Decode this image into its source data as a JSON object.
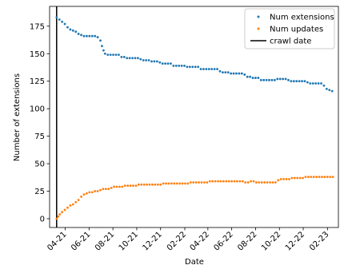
{
  "chart_data": {
    "type": "scatter",
    "xlabel": "Date",
    "ylabel": "Number of extensions",
    "x_tick_labels": [
      "04-21",
      "06-21",
      "08-21",
      "10-21",
      "12-21",
      "02-22",
      "04-22",
      "06-22",
      "08-22",
      "10-22",
      "12-22",
      "02-23"
    ],
    "x_tick_dates": [
      "2021-04-01",
      "2021-06-01",
      "2021-08-01",
      "2021-10-01",
      "2021-12-01",
      "2022-02-01",
      "2022-04-01",
      "2022-06-01",
      "2022-08-01",
      "2022-10-01",
      "2022-12-01",
      "2023-02-01"
    ],
    "xlim": [
      "2021-02-20",
      "2023-03-01"
    ],
    "ylim": [
      -8,
      193
    ],
    "y_ticks": [
      0,
      25,
      50,
      75,
      100,
      125,
      150,
      175
    ],
    "legend": {
      "placement": "top-right"
    },
    "crawl_date": {
      "name": "crawl date",
      "x": "2021-03-10",
      "color": "#000000"
    },
    "series": [
      {
        "name": "Num extensions",
        "color": "#1f77b4",
        "points": [
          [
            "2021-03-10",
            183
          ],
          [
            "2021-03-17",
            181
          ],
          [
            "2021-03-24",
            179
          ],
          [
            "2021-03-31",
            177
          ],
          [
            "2021-04-07",
            174
          ],
          [
            "2021-04-14",
            172
          ],
          [
            "2021-04-21",
            171
          ],
          [
            "2021-04-28",
            170
          ],
          [
            "2021-05-05",
            168
          ],
          [
            "2021-05-12",
            167
          ],
          [
            "2021-05-19",
            166
          ],
          [
            "2021-05-26",
            166
          ],
          [
            "2021-06-02",
            166
          ],
          [
            "2021-06-09",
            166
          ],
          [
            "2021-06-16",
            166
          ],
          [
            "2021-06-23",
            165
          ],
          [
            "2021-06-30",
            162
          ],
          [
            "2021-07-04",
            157
          ],
          [
            "2021-07-08",
            153
          ],
          [
            "2021-07-12",
            150
          ],
          [
            "2021-07-19",
            149
          ],
          [
            "2021-07-26",
            149
          ],
          [
            "2021-08-02",
            149
          ],
          [
            "2021-08-09",
            149
          ],
          [
            "2021-08-16",
            149
          ],
          [
            "2021-08-23",
            147
          ],
          [
            "2021-08-30",
            147
          ],
          [
            "2021-09-06",
            146
          ],
          [
            "2021-09-13",
            146
          ],
          [
            "2021-09-20",
            146
          ],
          [
            "2021-09-27",
            146
          ],
          [
            "2021-10-04",
            146
          ],
          [
            "2021-10-11",
            145
          ],
          [
            "2021-10-18",
            144
          ],
          [
            "2021-10-25",
            144
          ],
          [
            "2021-11-01",
            144
          ],
          [
            "2021-11-08",
            143
          ],
          [
            "2021-11-15",
            143
          ],
          [
            "2021-11-22",
            143
          ],
          [
            "2021-11-29",
            142
          ],
          [
            "2021-12-06",
            141
          ],
          [
            "2021-12-13",
            141
          ],
          [
            "2021-12-20",
            141
          ],
          [
            "2021-12-27",
            141
          ],
          [
            "2022-01-03",
            139
          ],
          [
            "2022-01-10",
            139
          ],
          [
            "2022-01-17",
            139
          ],
          [
            "2022-01-24",
            139
          ],
          [
            "2022-01-31",
            139
          ],
          [
            "2022-02-07",
            138
          ],
          [
            "2022-02-14",
            138
          ],
          [
            "2022-02-21",
            138
          ],
          [
            "2022-02-28",
            138
          ],
          [
            "2022-03-07",
            138
          ],
          [
            "2022-03-14",
            136
          ],
          [
            "2022-03-21",
            136
          ],
          [
            "2022-03-28",
            136
          ],
          [
            "2022-04-04",
            136
          ],
          [
            "2022-04-11",
            136
          ],
          [
            "2022-04-18",
            136
          ],
          [
            "2022-04-25",
            136
          ],
          [
            "2022-05-02",
            134
          ],
          [
            "2022-05-09",
            133
          ],
          [
            "2022-05-16",
            133
          ],
          [
            "2022-05-23",
            133
          ],
          [
            "2022-05-30",
            132
          ],
          [
            "2022-06-06",
            132
          ],
          [
            "2022-06-13",
            132
          ],
          [
            "2022-06-20",
            132
          ],
          [
            "2022-06-27",
            132
          ],
          [
            "2022-07-04",
            131
          ],
          [
            "2022-07-11",
            129
          ],
          [
            "2022-07-18",
            129
          ],
          [
            "2022-07-25",
            128
          ],
          [
            "2022-08-01",
            128
          ],
          [
            "2022-08-08",
            128
          ],
          [
            "2022-08-15",
            126
          ],
          [
            "2022-08-22",
            126
          ],
          [
            "2022-08-29",
            126
          ],
          [
            "2022-09-05",
            126
          ],
          [
            "2022-09-12",
            126
          ],
          [
            "2022-09-19",
            126
          ],
          [
            "2022-09-26",
            127
          ],
          [
            "2022-10-03",
            127
          ],
          [
            "2022-10-10",
            127
          ],
          [
            "2022-10-17",
            127
          ],
          [
            "2022-10-24",
            126
          ],
          [
            "2022-10-31",
            125
          ],
          [
            "2022-11-07",
            125
          ],
          [
            "2022-11-14",
            125
          ],
          [
            "2022-11-21",
            125
          ],
          [
            "2022-11-28",
            125
          ],
          [
            "2022-12-05",
            125
          ],
          [
            "2022-12-12",
            124
          ],
          [
            "2022-12-19",
            123
          ],
          [
            "2022-12-26",
            123
          ],
          [
            "2023-01-02",
            123
          ],
          [
            "2023-01-09",
            123
          ],
          [
            "2023-01-16",
            123
          ],
          [
            "2023-01-23",
            121
          ],
          [
            "2023-01-30",
            118
          ],
          [
            "2023-02-06",
            117
          ],
          [
            "2023-02-13",
            116
          ]
        ]
      },
      {
        "name": "Num updates",
        "color": "#ff7f0e",
        "points": [
          [
            "2021-03-10",
            0
          ],
          [
            "2021-03-14",
            2
          ],
          [
            "2021-03-18",
            4
          ],
          [
            "2021-03-24",
            6
          ],
          [
            "2021-03-31",
            8
          ],
          [
            "2021-04-07",
            10
          ],
          [
            "2021-04-14",
            12
          ],
          [
            "2021-04-21",
            13
          ],
          [
            "2021-04-28",
            15
          ],
          [
            "2021-05-05",
            17
          ],
          [
            "2021-05-12",
            20
          ],
          [
            "2021-05-19",
            22
          ],
          [
            "2021-05-26",
            23
          ],
          [
            "2021-06-02",
            24
          ],
          [
            "2021-06-09",
            24
          ],
          [
            "2021-06-16",
            25
          ],
          [
            "2021-06-23",
            25
          ],
          [
            "2021-06-30",
            26
          ],
          [
            "2021-07-07",
            27
          ],
          [
            "2021-07-14",
            27
          ],
          [
            "2021-07-21",
            27
          ],
          [
            "2021-07-28",
            28
          ],
          [
            "2021-08-04",
            29
          ],
          [
            "2021-08-11",
            29
          ],
          [
            "2021-08-18",
            29
          ],
          [
            "2021-08-25",
            29
          ],
          [
            "2021-09-01",
            30
          ],
          [
            "2021-09-08",
            30
          ],
          [
            "2021-09-15",
            30
          ],
          [
            "2021-09-22",
            30
          ],
          [
            "2021-09-29",
            30
          ],
          [
            "2021-10-06",
            31
          ],
          [
            "2021-10-13",
            31
          ],
          [
            "2021-10-20",
            31
          ],
          [
            "2021-10-27",
            31
          ],
          [
            "2021-11-03",
            31
          ],
          [
            "2021-11-10",
            31
          ],
          [
            "2021-11-17",
            31
          ],
          [
            "2021-11-24",
            31
          ],
          [
            "2021-12-01",
            31
          ],
          [
            "2021-12-08",
            32
          ],
          [
            "2021-12-15",
            32
          ],
          [
            "2021-12-22",
            32
          ],
          [
            "2021-12-29",
            32
          ],
          [
            "2022-01-05",
            32
          ],
          [
            "2022-01-12",
            32
          ],
          [
            "2022-01-19",
            32
          ],
          [
            "2022-01-26",
            32
          ],
          [
            "2022-02-02",
            32
          ],
          [
            "2022-02-09",
            32
          ],
          [
            "2022-02-16",
            33
          ],
          [
            "2022-02-23",
            33
          ],
          [
            "2022-03-02",
            33
          ],
          [
            "2022-03-09",
            33
          ],
          [
            "2022-03-16",
            33
          ],
          [
            "2022-03-23",
            33
          ],
          [
            "2022-03-30",
            33
          ],
          [
            "2022-04-06",
            34
          ],
          [
            "2022-04-13",
            34
          ],
          [
            "2022-04-20",
            34
          ],
          [
            "2022-04-27",
            34
          ],
          [
            "2022-05-04",
            34
          ],
          [
            "2022-05-11",
            34
          ],
          [
            "2022-05-18",
            34
          ],
          [
            "2022-05-25",
            34
          ],
          [
            "2022-06-01",
            34
          ],
          [
            "2022-06-08",
            34
          ],
          [
            "2022-06-15",
            34
          ],
          [
            "2022-06-22",
            34
          ],
          [
            "2022-06-29",
            34
          ],
          [
            "2022-07-06",
            33
          ],
          [
            "2022-07-13",
            33
          ],
          [
            "2022-07-20",
            34
          ],
          [
            "2022-07-27",
            34
          ],
          [
            "2022-08-03",
            33
          ],
          [
            "2022-08-10",
            33
          ],
          [
            "2022-08-17",
            33
          ],
          [
            "2022-08-24",
            33
          ],
          [
            "2022-08-31",
            33
          ],
          [
            "2022-09-07",
            33
          ],
          [
            "2022-09-14",
            33
          ],
          [
            "2022-09-21",
            33
          ],
          [
            "2022-09-28",
            35
          ],
          [
            "2022-10-05",
            36
          ],
          [
            "2022-10-12",
            36
          ],
          [
            "2022-10-19",
            36
          ],
          [
            "2022-10-26",
            36
          ],
          [
            "2022-11-02",
            37
          ],
          [
            "2022-11-09",
            37
          ],
          [
            "2022-11-16",
            37
          ],
          [
            "2022-11-23",
            37
          ],
          [
            "2022-11-30",
            37
          ],
          [
            "2022-12-07",
            38
          ],
          [
            "2022-12-14",
            38
          ],
          [
            "2022-12-21",
            38
          ],
          [
            "2022-12-28",
            38
          ],
          [
            "2023-01-04",
            38
          ],
          [
            "2023-01-11",
            38
          ],
          [
            "2023-01-18",
            38
          ],
          [
            "2023-01-25",
            38
          ],
          [
            "2023-02-01",
            38
          ],
          [
            "2023-02-08",
            38
          ],
          [
            "2023-02-15",
            38
          ]
        ]
      }
    ]
  }
}
